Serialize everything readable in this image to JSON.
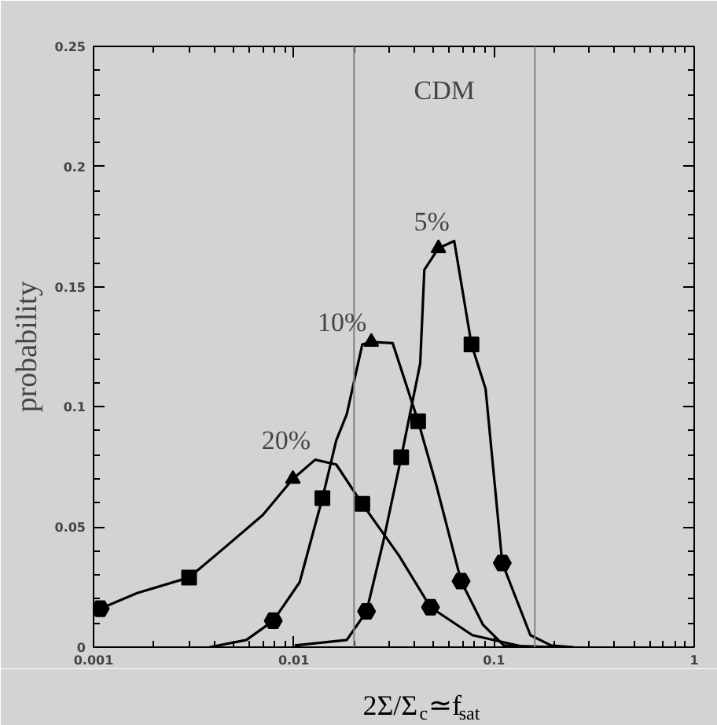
{
  "chart_data": {
    "type": "line",
    "xlabel": "2Σ/Σ$_{c}$≃f$_{sat}$",
    "ylabel": "probability",
    "log": "x",
    "grid": false,
    "xlim": [
      0.001,
      1
    ],
    "ylim": [
      0,
      0.25
    ],
    "xticks": [
      0.001,
      0.01,
      0.1,
      1
    ],
    "yticks": [
      {
        "value": 0,
        "label": "0"
      },
      0.05,
      0.1,
      0.15,
      0.2,
      0.25
    ],
    "series": [
      {
        "name": "20%",
        "color": "#000000",
        "marker": "none",
        "x": [
          0.00108,
          0.00165,
          0.003,
          0.0046,
          0.007,
          0.0099,
          0.0128,
          0.0163,
          0.022,
          0.0336,
          0.0482,
          0.078,
          0.143,
          0.2
        ],
        "values": [
          0.016,
          0.0225,
          0.029,
          0.042,
          0.055,
          0.07,
          0.078,
          0.076,
          0.0596,
          0.038,
          0.0166,
          0.005,
          0,
          0
        ]
      },
      {
        "name": "10%",
        "color": "#000000",
        "marker": "none",
        "x": [
          0.0038,
          0.0058,
          0.0079,
          0.0107,
          0.0139,
          0.0163,
          0.0184,
          0.022,
          0.0244,
          0.0312,
          0.0418,
          0.0513,
          0.0685,
          0.088,
          0.112,
          0.2
        ],
        "values": [
          0,
          0.003,
          0.011,
          0.027,
          0.062,
          0.086,
          0.097,
          0.126,
          0.127,
          0.1265,
          0.094,
          0.068,
          0.0275,
          0.0094,
          0.0007,
          0
        ]
      },
      {
        "name": "5%",
        "color": "#000000",
        "marker": "none",
        "x": [
          0.0101,
          0.0184,
          0.0231,
          0.028,
          0.0344,
          0.0428,
          0.0449,
          0.0528,
          0.0633,
          0.0772,
          0.0908,
          0.11,
          0.152,
          0.193,
          0.25
        ],
        "values": [
          0.0007,
          0.003,
          0.0149,
          0.044,
          0.079,
          0.118,
          0.157,
          0.166,
          0.169,
          0.126,
          0.1075,
          0.035,
          0.005,
          0.0007,
          0
        ]
      },
      {
        "type": "scatter",
        "color": "#000000",
        "marker": "circle",
        "x": [
          0.00108,
          0.0482,
          0.0079,
          0.0685,
          0.0231,
          0.11
        ],
        "values": [
          0.016,
          0.0166,
          0.011,
          0.0275,
          0.0149,
          0.035
        ]
      },
      {
        "type": "scatter",
        "color": "#000000",
        "marker": "square",
        "x": [
          0.003,
          0.022,
          0.0139,
          0.0418,
          0.0344,
          0.0772
        ],
        "values": [
          0.029,
          0.0596,
          0.062,
          0.094,
          0.079,
          0.126
        ]
      },
      {
        "type": "scatter",
        "color": "#000000",
        "marker": "triangle",
        "x": [
          0.0099,
          0.0244,
          0.0528
        ],
        "values": [
          0.07,
          0.127,
          0.166
        ]
      }
    ],
    "ref_lines": [
      {
        "axis": "x",
        "value": 0.02,
        "color": "#808080"
      },
      {
        "axis": "x",
        "value": 0.16,
        "color": "#808080"
      }
    ],
    "annotations": [
      "CDM"
    ]
  }
}
